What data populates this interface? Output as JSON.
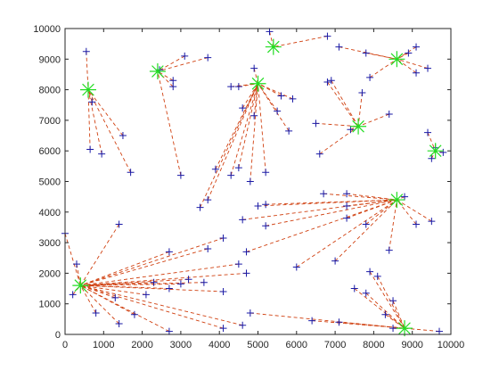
{
  "chart_data": {
    "type": "scatter",
    "title": "",
    "xlabel": "",
    "ylabel": "",
    "xlim": [
      0,
      10000
    ],
    "ylim": [
      0,
      10000
    ],
    "x_ticks": [
      0,
      1000,
      2000,
      3000,
      4000,
      5000,
      6000,
      7000,
      8000,
      9000,
      10000
    ],
    "y_ticks": [
      0,
      1000,
      2000,
      3000,
      4000,
      5000,
      6000,
      7000,
      8000,
      9000,
      10000
    ],
    "grid": false,
    "colors": {
      "center_marker": "#22dd22",
      "point_marker": "#1a1aa6",
      "link_line": "#d04010",
      "axis": "#262626"
    },
    "centers": [
      {
        "x": 600,
        "y": 8000
      },
      {
        "x": 2400,
        "y": 8600
      },
      {
        "x": 5000,
        "y": 8200
      },
      {
        "x": 5400,
        "y": 9400
      },
      {
        "x": 8600,
        "y": 9000
      },
      {
        "x": 7600,
        "y": 6800
      },
      {
        "x": 9600,
        "y": 6000
      },
      {
        "x": 8600,
        "y": 4400
      },
      {
        "x": 400,
        "y": 1600
      },
      {
        "x": 8800,
        "y": 200
      }
    ],
    "points": [
      {
        "x": 550,
        "y": 9250,
        "c": 0
      },
      {
        "x": 700,
        "y": 7600,
        "c": 0
      },
      {
        "x": 650,
        "y": 6050,
        "c": 0
      },
      {
        "x": 950,
        "y": 5900,
        "c": 0
      },
      {
        "x": 1500,
        "y": 6500,
        "c": 0
      },
      {
        "x": 1700,
        "y": 5300,
        "c": 0
      },
      {
        "x": 2450,
        "y": 8650,
        "c": 1
      },
      {
        "x": 3100,
        "y": 9100,
        "c": 1
      },
      {
        "x": 3700,
        "y": 9050,
        "c": 1
      },
      {
        "x": 2800,
        "y": 8300,
        "c": 1
      },
      {
        "x": 2800,
        "y": 8100,
        "c": 1
      },
      {
        "x": 3000,
        "y": 5200,
        "c": 1
      },
      {
        "x": 4300,
        "y": 8100,
        "c": 2
      },
      {
        "x": 4500,
        "y": 8100,
        "c": 2
      },
      {
        "x": 4900,
        "y": 8700,
        "c": 2
      },
      {
        "x": 5600,
        "y": 7800,
        "c": 2
      },
      {
        "x": 5900,
        "y": 7700,
        "c": 2
      },
      {
        "x": 5800,
        "y": 6650,
        "c": 2
      },
      {
        "x": 5500,
        "y": 7300,
        "c": 2
      },
      {
        "x": 4600,
        "y": 7400,
        "c": 2
      },
      {
        "x": 4900,
        "y": 7150,
        "c": 2
      },
      {
        "x": 3900,
        "y": 5400,
        "c": 2
      },
      {
        "x": 3700,
        "y": 4400,
        "c": 2
      },
      {
        "x": 3500,
        "y": 4150,
        "c": 2
      },
      {
        "x": 4300,
        "y": 5200,
        "c": 2
      },
      {
        "x": 4500,
        "y": 5450,
        "c": 2
      },
      {
        "x": 4800,
        "y": 5000,
        "c": 2
      },
      {
        "x": 5200,
        "y": 5300,
        "c": 2
      },
      {
        "x": 5300,
        "y": 9900,
        "c": 3
      },
      {
        "x": 6800,
        "y": 9750,
        "c": 3
      },
      {
        "x": 7100,
        "y": 9400,
        "c": 4
      },
      {
        "x": 7800,
        "y": 9200,
        "c": 4
      },
      {
        "x": 7900,
        "y": 8400,
        "c": 4
      },
      {
        "x": 9100,
        "y": 9400,
        "c": 4
      },
      {
        "x": 8900,
        "y": 9200,
        "c": 4
      },
      {
        "x": 9100,
        "y": 8550,
        "c": 4
      },
      {
        "x": 9400,
        "y": 8700,
        "c": 4
      },
      {
        "x": 6500,
        "y": 6900,
        "c": 5
      },
      {
        "x": 6900,
        "y": 8300,
        "c": 5
      },
      {
        "x": 6800,
        "y": 8250,
        "c": 5
      },
      {
        "x": 7700,
        "y": 7900,
        "c": 5
      },
      {
        "x": 7400,
        "y": 6700,
        "c": 5
      },
      {
        "x": 8400,
        "y": 7200,
        "c": 5
      },
      {
        "x": 6600,
        "y": 5900,
        "c": 5
      },
      {
        "x": 9400,
        "y": 6600,
        "c": 6
      },
      {
        "x": 9600,
        "y": 6100,
        "c": 6
      },
      {
        "x": 9800,
        "y": 5950,
        "c": 6
      },
      {
        "x": 9500,
        "y": 5750,
        "c": 6
      },
      {
        "x": 6700,
        "y": 4600,
        "c": 7
      },
      {
        "x": 7300,
        "y": 4600,
        "c": 7
      },
      {
        "x": 7300,
        "y": 4200,
        "c": 7
      },
      {
        "x": 5000,
        "y": 4200,
        "c": 7
      },
      {
        "x": 5200,
        "y": 4250,
        "c": 7
      },
      {
        "x": 4600,
        "y": 3750,
        "c": 7
      },
      {
        "x": 7300,
        "y": 3800,
        "c": 7
      },
      {
        "x": 5200,
        "y": 3550,
        "c": 7
      },
      {
        "x": 4700,
        "y": 2700,
        "c": 7
      },
      {
        "x": 6000,
        "y": 2200,
        "c": 7
      },
      {
        "x": 7000,
        "y": 2400,
        "c": 7
      },
      {
        "x": 7800,
        "y": 3600,
        "c": 7
      },
      {
        "x": 8400,
        "y": 2750,
        "c": 7
      },
      {
        "x": 8800,
        "y": 4500,
        "c": 7
      },
      {
        "x": 9100,
        "y": 3600,
        "c": 7
      },
      {
        "x": 9500,
        "y": 3700,
        "c": 7
      },
      {
        "x": 0,
        "y": 3300,
        "c": 8
      },
      {
        "x": 300,
        "y": 2300,
        "c": 8
      },
      {
        "x": 200,
        "y": 1300,
        "c": 8
      },
      {
        "x": 1400,
        "y": 3600,
        "c": 8
      },
      {
        "x": 800,
        "y": 700,
        "c": 8
      },
      {
        "x": 1300,
        "y": 1200,
        "c": 8
      },
      {
        "x": 1400,
        "y": 350,
        "c": 8
      },
      {
        "x": 1800,
        "y": 650,
        "c": 8
      },
      {
        "x": 2100,
        "y": 1300,
        "c": 8
      },
      {
        "x": 2300,
        "y": 1700,
        "c": 8
      },
      {
        "x": 2700,
        "y": 2700,
        "c": 8
      },
      {
        "x": 2700,
        "y": 1500,
        "c": 8
      },
      {
        "x": 3000,
        "y": 1650,
        "c": 8
      },
      {
        "x": 3200,
        "y": 1800,
        "c": 8
      },
      {
        "x": 3600,
        "y": 1700,
        "c": 8
      },
      {
        "x": 3700,
        "y": 2800,
        "c": 8
      },
      {
        "x": 4100,
        "y": 1400,
        "c": 8
      },
      {
        "x": 4100,
        "y": 3150,
        "c": 8
      },
      {
        "x": 4500,
        "y": 2300,
        "c": 8
      },
      {
        "x": 4700,
        "y": 2000,
        "c": 8
      },
      {
        "x": 2700,
        "y": 100,
        "c": 8
      },
      {
        "x": 4100,
        "y": 200,
        "c": 8
      },
      {
        "x": 4600,
        "y": 300,
        "c": 8
      },
      {
        "x": 4800,
        "y": 700,
        "c": 9
      },
      {
        "x": 6400,
        "y": 450,
        "c": 9
      },
      {
        "x": 7100,
        "y": 400,
        "c": 9
      },
      {
        "x": 7500,
        "y": 1500,
        "c": 9
      },
      {
        "x": 7800,
        "y": 1350,
        "c": 9
      },
      {
        "x": 7900,
        "y": 2050,
        "c": 9
      },
      {
        "x": 8100,
        "y": 1900,
        "c": 9
      },
      {
        "x": 8300,
        "y": 650,
        "c": 9
      },
      {
        "x": 8500,
        "y": 1100,
        "c": 9
      },
      {
        "x": 8500,
        "y": 200,
        "c": 9
      },
      {
        "x": 9700,
        "y": 100,
        "c": 9
      }
    ]
  }
}
